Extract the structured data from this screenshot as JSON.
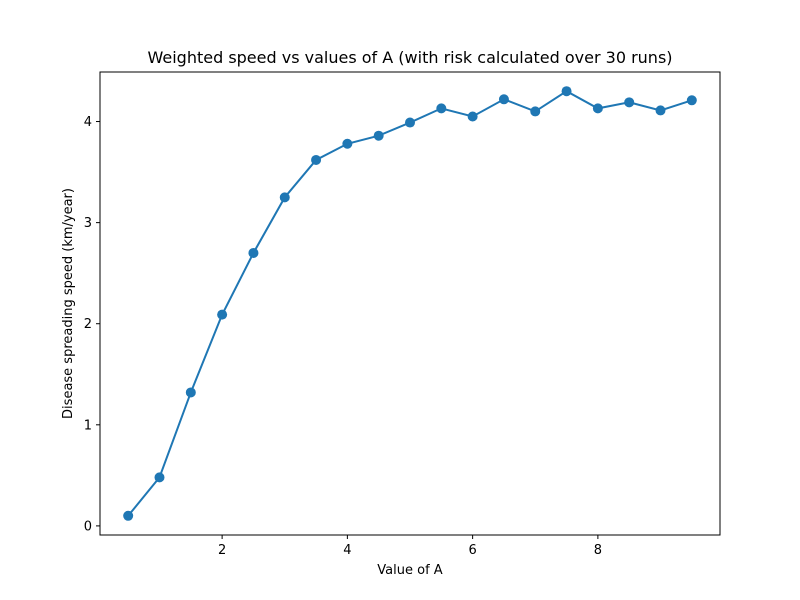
{
  "chart_data": {
    "type": "line",
    "title": "Weighted speed vs values of A (with risk calculated over 30 runs)",
    "xlabel": "Value of A",
    "ylabel": "Disease spreading speed (km/year)",
    "xlim": [
      0.05,
      9.95
    ],
    "ylim": [
      -0.09,
      4.49
    ],
    "xticks": [
      2,
      4,
      6,
      8
    ],
    "yticks": [
      0,
      1,
      2,
      3,
      4
    ],
    "grid": false,
    "series": [
      {
        "color": "#1f77b4",
        "marker": "circle",
        "x": [
          0.5,
          1.0,
          1.5,
          2.0,
          2.5,
          3.0,
          3.5,
          4.0,
          4.5,
          5.0,
          5.5,
          6.0,
          6.5,
          7.0,
          7.5,
          8.0,
          8.5,
          9.0,
          9.5
        ],
        "y": [
          0.1,
          0.48,
          1.32,
          2.09,
          2.7,
          3.25,
          3.62,
          3.78,
          3.86,
          3.99,
          4.13,
          4.05,
          4.22,
          4.1,
          4.3,
          4.13,
          4.19,
          4.11,
          4.21
        ]
      }
    ]
  }
}
